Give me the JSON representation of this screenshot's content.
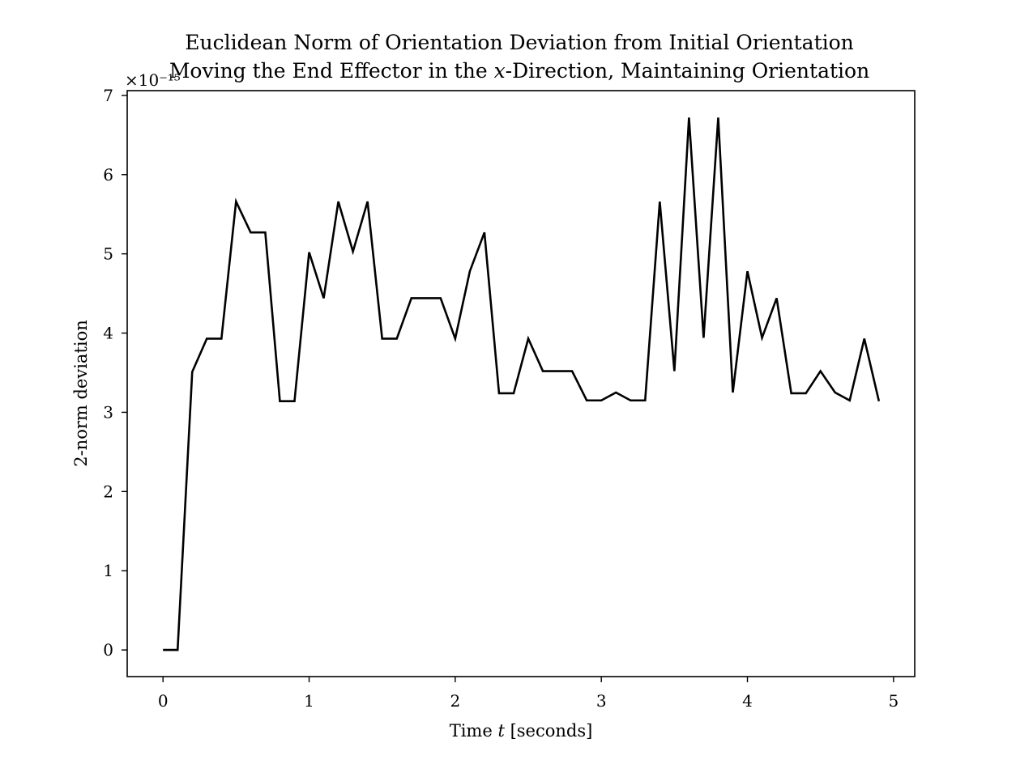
{
  "chart_data": {
    "type": "line",
    "title_line1": "Euclidean Norm of Orientation Deviation from Initial Orientation",
    "title_line2": "Moving the End Effector in the x-Direction, Maintaining Orientation",
    "xlabel": "Time t [seconds]",
    "ylabel": "2-norm deviation",
    "y_offset_text": "×10⁻¹⁵",
    "x_ticks": [
      "0",
      "1",
      "2",
      "3",
      "4",
      "5"
    ],
    "y_ticks": [
      "0",
      "1",
      "2",
      "3",
      "4",
      "5",
      "6",
      "7"
    ],
    "xlim": [
      -0.245,
      5.145
    ],
    "ylim": [
      -0.336,
      7.06
    ],
    "grid": false,
    "line_color": "#000000",
    "series": [
      {
        "x": [
          0.0,
          0.1,
          0.2,
          0.3,
          0.4,
          0.5,
          0.6,
          0.7,
          0.8,
          0.9,
          1.0,
          1.1,
          1.2,
          1.3,
          1.4,
          1.5,
          1.6,
          1.7,
          1.8,
          1.9,
          2.0,
          2.1,
          2.2,
          2.3,
          2.4,
          2.5,
          2.6,
          2.7,
          2.8,
          2.9,
          3.0,
          3.1,
          3.2,
          3.3,
          3.4,
          3.5,
          3.6,
          3.7,
          3.8,
          3.9,
          4.0,
          4.1,
          4.2,
          4.3,
          4.4,
          4.5,
          4.6,
          4.7,
          4.8,
          4.9
        ],
        "values": [
          0.0,
          0.0,
          3.51,
          3.93,
          3.93,
          5.66,
          5.27,
          5.27,
          3.14,
          3.14,
          5.02,
          4.44,
          5.66,
          5.03,
          5.66,
          3.93,
          3.93,
          4.44,
          4.44,
          4.44,
          3.93,
          4.78,
          5.27,
          3.24,
          3.24,
          3.93,
          3.52,
          3.52,
          3.52,
          3.15,
          3.15,
          3.25,
          3.15,
          3.15,
          5.66,
          3.52,
          6.72,
          3.94,
          6.72,
          3.25,
          4.78,
          3.94,
          4.44,
          3.24,
          3.24,
          3.52,
          3.25,
          3.15,
          3.93,
          3.14
        ]
      }
    ]
  }
}
